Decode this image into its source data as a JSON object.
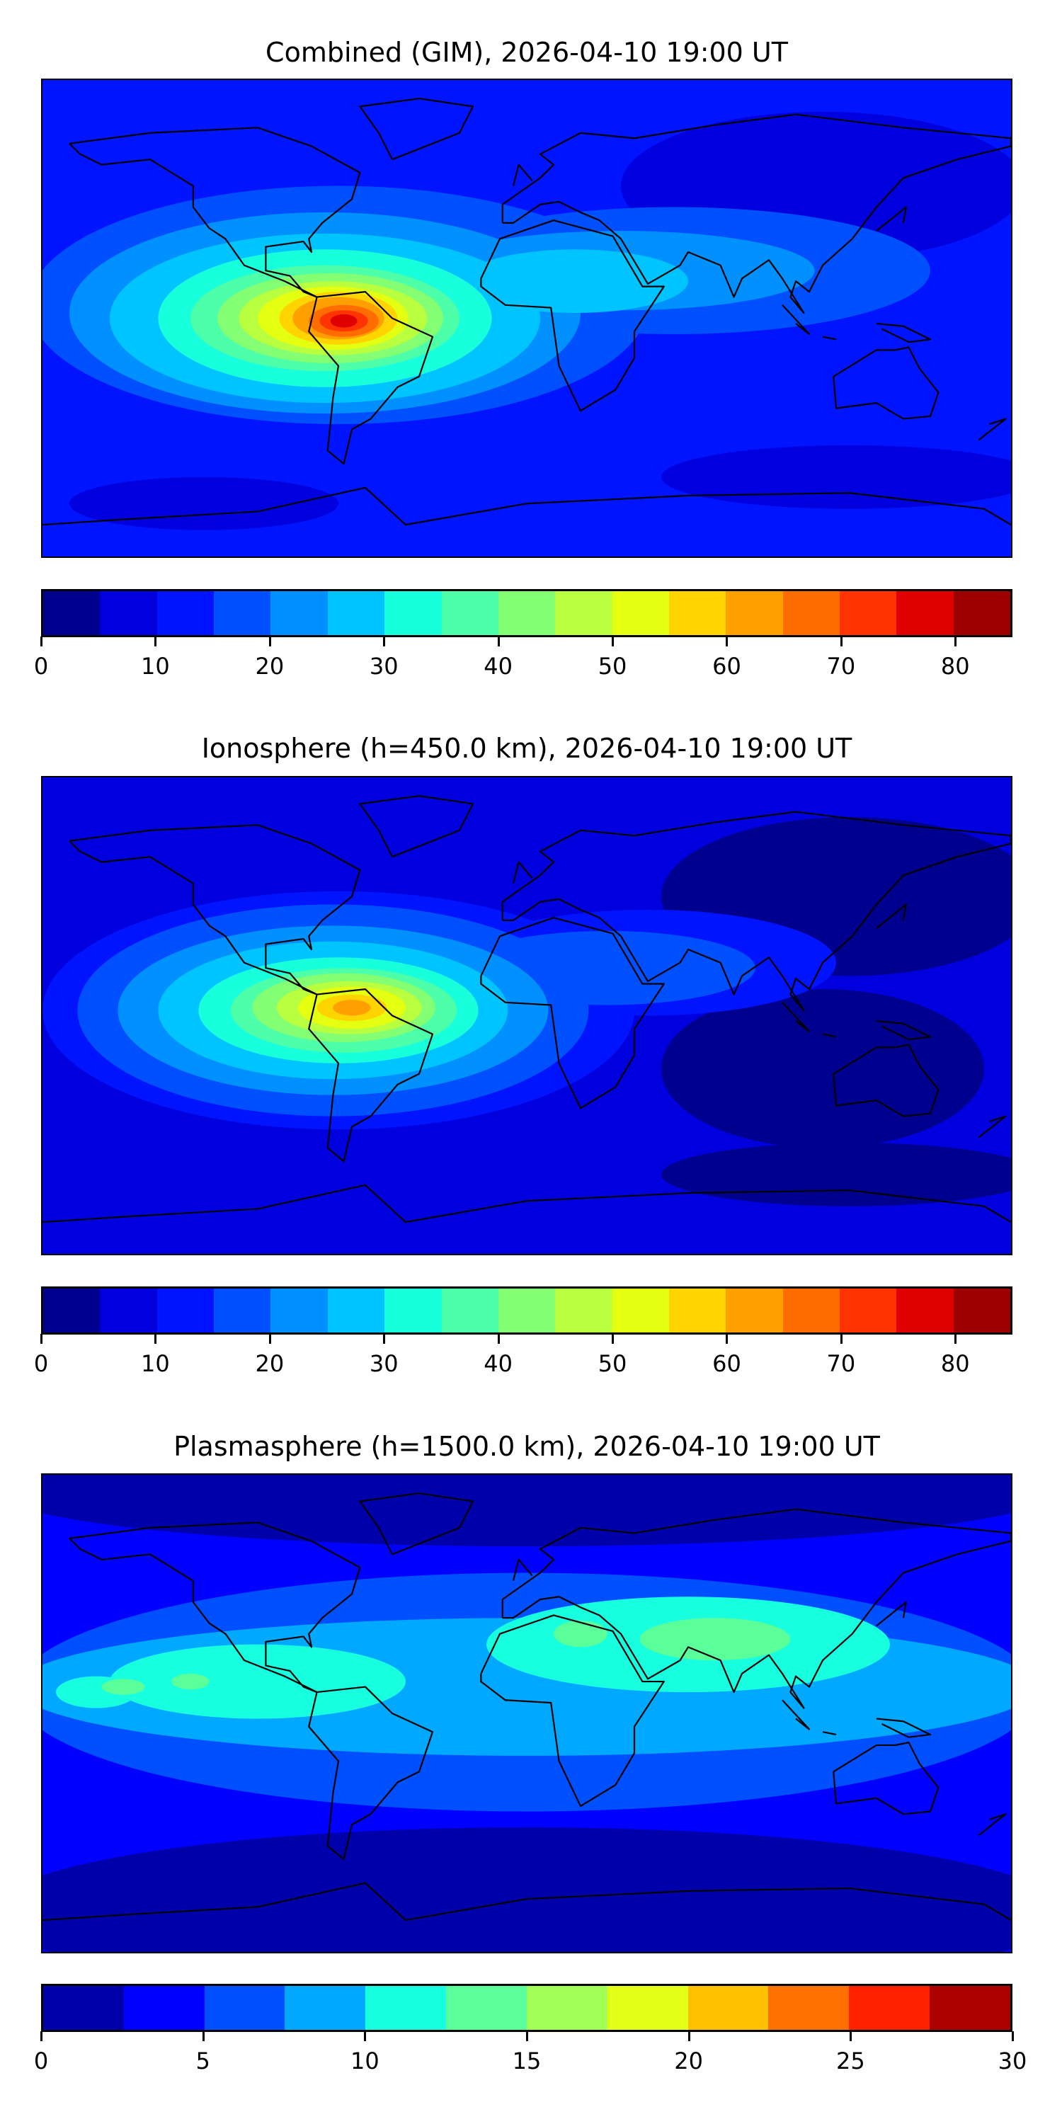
{
  "chart_data": [
    {
      "type": "heatmap",
      "title": "Combined (GIM), 2026-04-10 19:00 UT",
      "description_field": "TEC contour map",
      "levels_min": 0,
      "levels_max": 85,
      "level_step": 5,
      "colorbar_ticks": [
        "0",
        "10",
        "20",
        "30",
        "40",
        "50",
        "60",
        "70",
        "80"
      ],
      "tick_values": [
        0,
        10,
        20,
        30,
        40,
        50,
        60,
        70,
        80
      ],
      "colors": [
        "#00008f",
        "#0000df",
        "#0014ff",
        "#0050ff",
        "#0090ff",
        "#00c4ff",
        "#18ffdc",
        "#4cffa8",
        "#84ff74",
        "#b8ff40",
        "#e4ff10",
        "#ffd400",
        "#ffa000",
        "#ff6c00",
        "#ff3400",
        "#e00000",
        "#9c0000"
      ],
      "background_level": 2,
      "peak_value_approx": 80,
      "peak_location_lonlat": [
        -70,
        -1
      ]
    },
    {
      "type": "heatmap",
      "title": "Ionosphere  (h=450.0 km), 2026-04-10 19:00 UT",
      "levels_min": 0,
      "levels_max": 85,
      "level_step": 5,
      "colorbar_ticks": [
        "0",
        "10",
        "20",
        "30",
        "40",
        "50",
        "60",
        "70",
        "80"
      ],
      "tick_values": [
        0,
        10,
        20,
        30,
        40,
        50,
        60,
        70,
        80
      ],
      "colors": [
        "#00008f",
        "#0000df",
        "#0014ff",
        "#0050ff",
        "#0090ff",
        "#00c4ff",
        "#18ffdc",
        "#4cffa8",
        "#84ff74",
        "#b8ff40",
        "#e4ff10",
        "#ffd400",
        "#ffa000",
        "#ff6c00",
        "#ff3400",
        "#e00000",
        "#9c0000"
      ],
      "background_level": 1,
      "peak_value_approx": 65,
      "peak_location_lonlat": [
        -65,
        3
      ]
    },
    {
      "type": "heatmap",
      "title": "Plasmasphere (h=1500.0 km), 2026-04-10 19:00 UT",
      "levels_min": 0,
      "levels_max": 30,
      "level_step": 2.5,
      "colorbar_ticks": [
        "0",
        "5",
        "10",
        "15",
        "20",
        "25",
        "30"
      ],
      "tick_values": [
        0,
        5,
        10,
        15,
        20,
        25,
        30
      ],
      "colors": [
        "#0000aa",
        "#0000ff",
        "#0050ff",
        "#00a8ff",
        "#18ffe0",
        "#5aff9a",
        "#a2ff55",
        "#e4ff18",
        "#ffc000",
        "#ff7000",
        "#ff2000",
        "#aa0000"
      ],
      "background_level": 1,
      "peak_value_approx": 15,
      "peak_location_lonlat": [
        75,
        25
      ]
    }
  ]
}
